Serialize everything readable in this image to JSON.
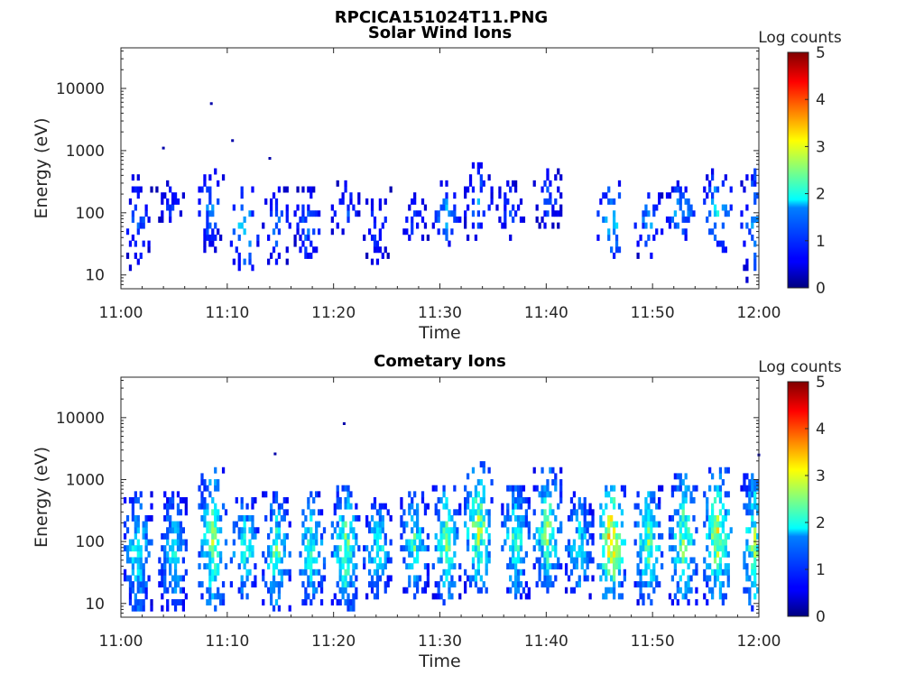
{
  "figure": {
    "title": "RPCICA151024T11.PNG"
  },
  "chart_data": [
    {
      "type": "heatmap",
      "title": "Solar Wind Ions",
      "xlabel": "Time",
      "ylabel": "Energy (eV)",
      "x_ticks": [
        "11:00",
        "11:10",
        "11:20",
        "11:30",
        "11:40",
        "11:50",
        "12:00"
      ],
      "x_range": [
        "11:00",
        "12:00"
      ],
      "y_scale": "log",
      "y_ticks": [
        "10",
        "100",
        "1000",
        "10000"
      ],
      "y_range": [
        6,
        45000
      ],
      "colorbar": {
        "label": "Log counts",
        "ticks": [
          "0",
          "1",
          "2",
          "3",
          "4",
          "5"
        ],
        "range": [
          0,
          5
        ],
        "colormap": "jet"
      },
      "activity_profile": [
        {
          "time_min": 1.5,
          "emin": 12,
          "emax": 400,
          "peak_log_counts": 1.2
        },
        {
          "time_min": 4.5,
          "emin": 60,
          "emax": 300,
          "peak_log_counts": 1.0
        },
        {
          "time_min": 8.3,
          "emin": 25,
          "emax": 500,
          "peak_log_counts": 1.4
        },
        {
          "time_min": 11.5,
          "emin": 12,
          "emax": 300,
          "peak_log_counts": 1.8
        },
        {
          "time_min": 14.5,
          "emin": 15,
          "emax": 250,
          "peak_log_counts": 1.3
        },
        {
          "time_min": 17.5,
          "emin": 15,
          "emax": 250,
          "peak_log_counts": 1.3
        },
        {
          "time_min": 21.0,
          "emin": 40,
          "emax": 300,
          "peak_log_counts": 1.2
        },
        {
          "time_min": 24.0,
          "emin": 15,
          "emax": 250,
          "peak_log_counts": 1.1
        },
        {
          "time_min": 27.5,
          "emin": 30,
          "emax": 200,
          "peak_log_counts": 1.1
        },
        {
          "time_min": 30.5,
          "emin": 30,
          "emax": 300,
          "peak_log_counts": 1.6
        },
        {
          "time_min": 33.5,
          "emin": 35,
          "emax": 600,
          "peak_log_counts": 1.4
        },
        {
          "time_min": 36.5,
          "emin": 35,
          "emax": 300,
          "peak_log_counts": 1.2
        },
        {
          "time_min": 40.0,
          "emin": 60,
          "emax": 500,
          "peak_log_counts": 1.2
        },
        {
          "time_min": 46.0,
          "emin": 18,
          "emax": 300,
          "peak_log_counts": 2.0
        },
        {
          "time_min": 49.5,
          "emin": 20,
          "emax": 250,
          "peak_log_counts": 1.5
        },
        {
          "time_min": 52.5,
          "emin": 35,
          "emax": 300,
          "peak_log_counts": 1.7
        },
        {
          "time_min": 56.0,
          "emin": 25,
          "emax": 500,
          "peak_log_counts": 1.8
        },
        {
          "time_min": 59.5,
          "emin": 8,
          "emax": 700,
          "peak_log_counts": 1.5
        }
      ],
      "isolated_points": [
        {
          "time_min": 8.5,
          "energy": 5700
        },
        {
          "time_min": 10.5,
          "energy": 1450
        },
        {
          "time_min": 4.0,
          "energy": 1100
        },
        {
          "time_min": 14.0,
          "energy": 750
        }
      ]
    },
    {
      "type": "heatmap",
      "title": "Cometary Ions",
      "xlabel": "Time",
      "ylabel": "Energy (eV)",
      "x_ticks": [
        "11:00",
        "11:10",
        "11:20",
        "11:30",
        "11:40",
        "11:50",
        "12:00"
      ],
      "x_range": [
        "11:00",
        "12:00"
      ],
      "y_scale": "log",
      "y_ticks": [
        "10",
        "100",
        "1000",
        "10000"
      ],
      "y_range": [
        6,
        45000
      ],
      "colorbar": {
        "label": "Log counts",
        "ticks": [
          "0",
          "1",
          "2",
          "3",
          "4",
          "5"
        ],
        "range": [
          0,
          5
        ],
        "colormap": "jet"
      },
      "activity_profile": [
        {
          "time_min": 1.5,
          "emin": 7,
          "emax": 700,
          "peak_log_counts": 2.2
        },
        {
          "time_min": 4.8,
          "emin": 7,
          "emax": 600,
          "peak_log_counts": 2.1
        },
        {
          "time_min": 8.5,
          "emin": 7,
          "emax": 1500,
          "peak_log_counts": 2.7
        },
        {
          "time_min": 11.5,
          "emin": 12,
          "emax": 500,
          "peak_log_counts": 2.3
        },
        {
          "time_min": 14.5,
          "emin": 7,
          "emax": 600,
          "peak_log_counts": 2.4
        },
        {
          "time_min": 17.8,
          "emin": 10,
          "emax": 600,
          "peak_log_counts": 2.3
        },
        {
          "time_min": 21.0,
          "emin": 7,
          "emax": 900,
          "peak_log_counts": 2.6
        },
        {
          "time_min": 24.0,
          "emin": 12,
          "emax": 500,
          "peak_log_counts": 2.2
        },
        {
          "time_min": 27.5,
          "emin": 12,
          "emax": 700,
          "peak_log_counts": 2.3
        },
        {
          "time_min": 30.5,
          "emin": 10,
          "emax": 900,
          "peak_log_counts": 2.6
        },
        {
          "time_min": 33.5,
          "emin": 15,
          "emax": 1800,
          "peak_log_counts": 2.9
        },
        {
          "time_min": 37.0,
          "emin": 12,
          "emax": 800,
          "peak_log_counts": 2.4
        },
        {
          "time_min": 40.0,
          "emin": 15,
          "emax": 1500,
          "peak_log_counts": 2.7
        },
        {
          "time_min": 43.0,
          "emin": 12,
          "emax": 600,
          "peak_log_counts": 2.1
        },
        {
          "time_min": 46.0,
          "emin": 12,
          "emax": 900,
          "peak_log_counts": 3.5
        },
        {
          "time_min": 49.5,
          "emin": 10,
          "emax": 900,
          "peak_log_counts": 2.6
        },
        {
          "time_min": 52.8,
          "emin": 10,
          "emax": 1200,
          "peak_log_counts": 2.7
        },
        {
          "time_min": 56.0,
          "emin": 10,
          "emax": 1500,
          "peak_log_counts": 3.0
        },
        {
          "time_min": 59.5,
          "emin": 7,
          "emax": 1300,
          "peak_log_counts": 2.6
        }
      ],
      "isolated_points": [
        {
          "time_min": 21.0,
          "energy": 8000
        },
        {
          "time_min": 14.5,
          "energy": 2600
        },
        {
          "time_min": 60.0,
          "energy": 2500
        }
      ]
    }
  ]
}
